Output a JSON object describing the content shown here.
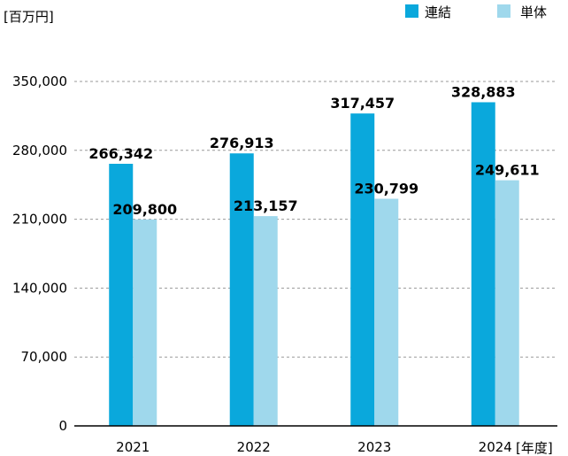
{
  "chart_data": {
    "type": "bar",
    "ylabel": "[百万円]",
    "xlabel": "[年度]",
    "categories": [
      "2021",
      "2022",
      "2023",
      "2024"
    ],
    "series": [
      {
        "name": "連結",
        "color": "#0aa8dc",
        "values": [
          266342,
          276913,
          317457,
          328883
        ],
        "labels": [
          "266,342",
          "276,913",
          "317,457",
          "328,883"
        ]
      },
      {
        "name": "単体",
        "color": "#9fd8ec",
        "values": [
          209800,
          213157,
          230799,
          249611
        ],
        "labels": [
          "209,800",
          "213,157",
          "230,799",
          "249,611"
        ]
      }
    ],
    "ylim": [
      0,
      350000
    ],
    "yticks": [
      0,
      70000,
      140000,
      210000,
      280000,
      350000
    ],
    "ytick_labels": [
      "0",
      "70,000",
      "140,000",
      "210,000",
      "280,000",
      "350,000"
    ],
    "grid": true,
    "legend": "top-right"
  }
}
